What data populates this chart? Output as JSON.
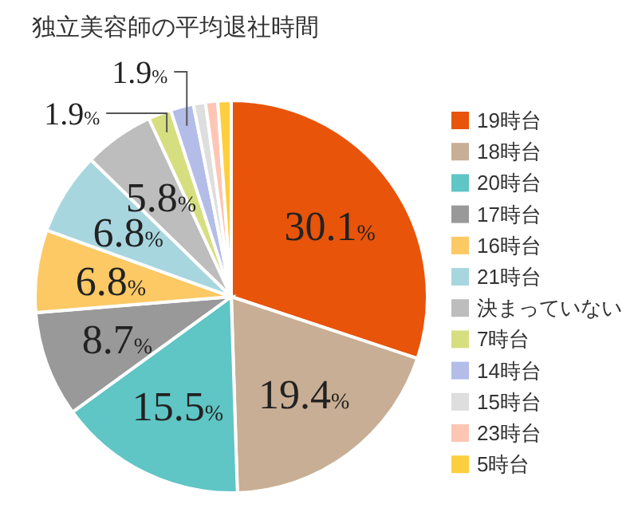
{
  "chart_data": {
    "type": "pie",
    "title": "独立美容師の平均退社時間",
    "categories": [
      "19時台",
      "18時台",
      "20時台",
      "17時台",
      "16時台",
      "21時台",
      "決まっていない",
      "7時台",
      "14時台",
      "15時台",
      "23時台",
      "5時台"
    ],
    "values": [
      30.1,
      19.4,
      15.5,
      8.7,
      6.8,
      6.8,
      5.8,
      1.9,
      1.9,
      1.0,
      1.0,
      1.1
    ],
    "value_labels": [
      "30.1%",
      "19.4%",
      "15.5%",
      "8.7%",
      "6.8%",
      "6.8%",
      "5.8%",
      "1.9%",
      "1.9%",
      null,
      null,
      null
    ],
    "colors": [
      "#e8540a",
      "#c8ae94",
      "#5fc5c5",
      "#999999",
      "#fcc965",
      "#a8d6df",
      "#bdbdbd",
      "#d6df80",
      "#b3bde8",
      "#dedede",
      "#fdc6b4",
      "#fdcf3e"
    ],
    "legend": "right"
  }
}
